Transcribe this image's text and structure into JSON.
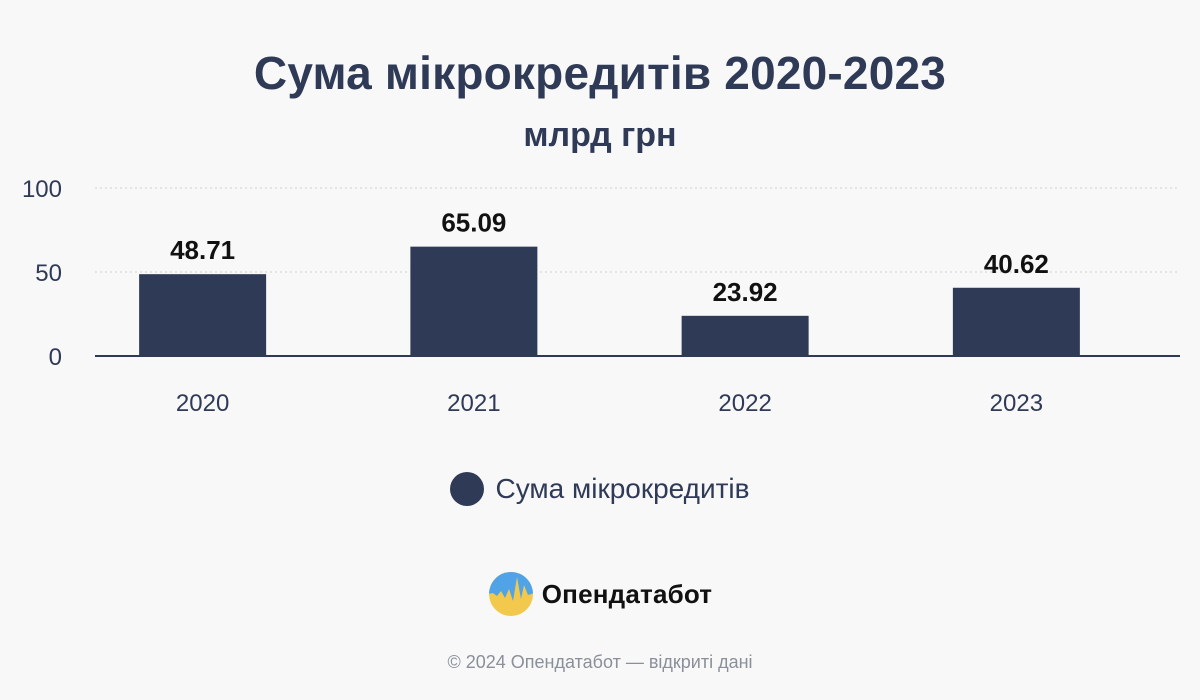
{
  "colors": {
    "bar": "#2f3a56",
    "axis": "#2f3a56",
    "grid": "#cfcfd4",
    "value_label": "#111111",
    "tick_label": "#2f3a56",
    "background": "#f8f8f9"
  },
  "legend": {
    "label": "Сума мікрокредитів"
  },
  "brand": {
    "name": "Опендатабот",
    "logo_icon": "opendatabot-logo-icon"
  },
  "footer": {
    "copyright": "© 2024 Опендатабот — відкриті дані"
  },
  "chart_data": {
    "type": "bar",
    "title": "Сума мікрокредитів 2020-2023",
    "subtitle": "млрд грн",
    "xlabel": "",
    "ylabel": "",
    "categories": [
      "2020",
      "2021",
      "2022",
      "2023"
    ],
    "series": [
      {
        "name": "Сума мікрокредитів",
        "values": [
          48.71,
          65.09,
          23.92,
          40.62
        ],
        "labels": [
          "48.71",
          "65.09",
          "23.92",
          "40.62"
        ]
      }
    ],
    "yticks": [
      0,
      50,
      100
    ],
    "ylim": [
      0,
      100
    ],
    "grid": true,
    "legend_position": "bottom"
  }
}
